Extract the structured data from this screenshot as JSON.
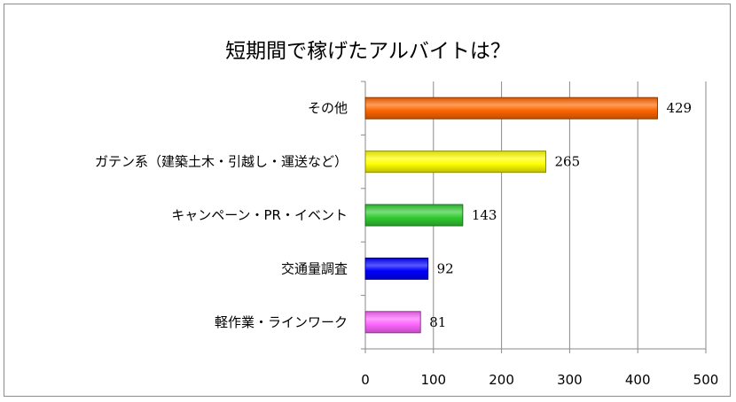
{
  "chart_data": {
    "type": "bar",
    "orientation": "horizontal",
    "title": "短期間で稼げたアルバイトは？",
    "categories": [
      "その他",
      "ガテン系（建築土木・引越し・運送など）",
      "キャンペーン・PR・イベント",
      "交通量調査",
      "軽作業・ラインワーク"
    ],
    "values": [
      429,
      265,
      143,
      92,
      81
    ],
    "colors": [
      "#ff6600",
      "#ffff00",
      "#33cc33",
      "#0000ff",
      "#ff66ff"
    ],
    "xlim": [
      0,
      500
    ],
    "xticks": [
      "0",
      "100",
      "200",
      "300",
      "400",
      "500"
    ],
    "grid": true,
    "legend": "none"
  }
}
